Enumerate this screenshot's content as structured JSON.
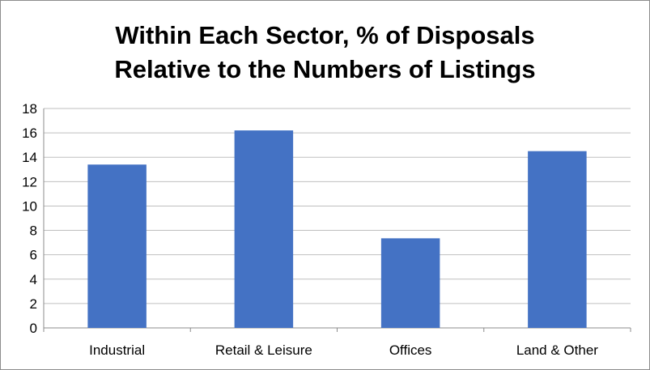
{
  "chart_data": {
    "type": "bar",
    "title_lines": [
      "Within Each Sector, % of Disposals",
      "Relative to the Numbers of Listings"
    ],
    "categories": [
      "Industrial",
      "Retail & Leisure",
      "Offices",
      "Land & Other"
    ],
    "values": [
      13.4,
      16.2,
      7.35,
      14.5
    ],
    "ylim": [
      0,
      18
    ],
    "yticks": [
      "0",
      "2",
      "4",
      "6",
      "8",
      "10",
      "12",
      "14",
      "16",
      "18"
    ],
    "grid": true,
    "legend": "none",
    "bar_color": "#4472C4",
    "grid_color": "#BFBFBF",
    "axis_color": "#8C8C8C"
  }
}
